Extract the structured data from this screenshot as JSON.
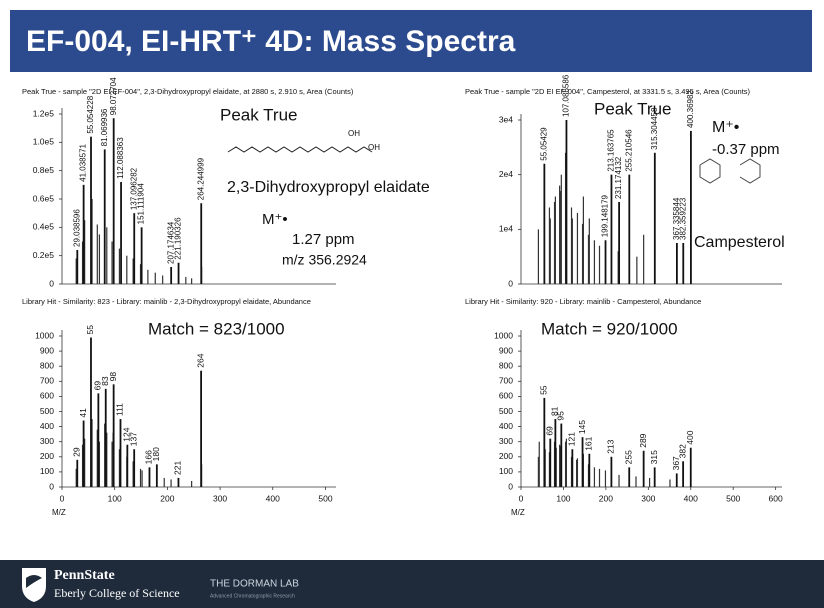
{
  "header": {
    "title": "EF-004, EI-HRT⁺ 4D:  Mass Spectra"
  },
  "footer": {
    "brand": "PennState",
    "college": "Eberly College of Science",
    "lab": "THE DORMAN LAB",
    "lab_sub": "Advanced Chromatographic Research"
  },
  "chart_data": [
    {
      "type": "bar",
      "title": "Peak True - sample \"2D EI EF-004\", 2,3-Dihydroxypropyl elaidate, at 2880 s, 2.910 s, Area (Counts)",
      "x": [
        29.038596,
        41.038571,
        55.054228,
        81.069936,
        98.072704,
        112.088363,
        137.096282,
        151.111904,
        207.174634,
        221.190326,
        264.244999
      ],
      "values": [
        24000,
        70000,
        104000,
        95000,
        117000,
        72000,
        50000,
        40000,
        12000,
        15000,
        57000
      ],
      "x_minor": [
        27,
        39,
        43,
        57,
        67,
        71,
        85,
        95,
        109,
        123,
        135,
        149,
        163,
        177,
        191,
        235,
        246,
        265
      ],
      "values_minor": [
        18000,
        30000,
        45000,
        60000,
        42000,
        35000,
        40000,
        30000,
        25000,
        20000,
        18000,
        14000,
        10000,
        8000,
        6000,
        5000,
        4000,
        12000
      ],
      "xlim": [
        0,
        520
      ],
      "ylim": [
        0,
        120000
      ],
      "yticks": [
        0,
        {
          "value": 20000,
          "label": "0.2e5"
        },
        {
          "value": 40000,
          "label": "0.4e5"
        },
        {
          "value": 60000,
          "label": "0.6e5"
        },
        {
          "value": 80000,
          "label": "0.8e5"
        },
        {
          "value": 100000,
          "label": "1.0e5"
        },
        {
          "value": 120000,
          "label": "1.2e5"
        }
      ],
      "annotations": [
        "Peak True",
        "2,3-Dihydroxypropyl elaidate",
        "M⁺•",
        "1.27 ppm",
        "m/z 356.2924",
        "OH",
        "OH"
      ]
    },
    {
      "type": "bar",
      "title": "Peak True - sample \"2D EI EF-004\", Campesterol, at 3331.5 s, 3.495 s, Area (Counts)",
      "x": [
        55.05429,
        107.085586,
        199.148179,
        213.163765,
        231.174132,
        255.210546,
        315.304458,
        367.335844,
        382.359223,
        400.36982
      ],
      "values": [
        22000,
        30000,
        8000,
        20000,
        15000,
        20000,
        24000,
        7500,
        7500,
        28000
      ],
      "x_minor": [
        41,
        67,
        69,
        79,
        81,
        91,
        93,
        95,
        105,
        119,
        121,
        133,
        145,
        147,
        159,
        161,
        173,
        185,
        229,
        273,
        289
      ],
      "values_minor": [
        10000,
        14000,
        12000,
        15000,
        16000,
        18000,
        17000,
        20000,
        24000,
        14000,
        12000,
        13000,
        11000,
        16000,
        9000,
        12000,
        8000,
        7000,
        6000,
        5000,
        9000
      ],
      "xlim": [
        0,
        615
      ],
      "ylim": [
        0,
        30000
      ],
      "yticks": [
        0,
        {
          "value": 10000,
          "label": "1e4"
        },
        {
          "value": 20000,
          "label": "2e4"
        },
        {
          "value": 30000,
          "label": "3e4"
        }
      ],
      "annotations": [
        "Peak True",
        "M⁺•",
        "-0.37 ppm",
        "Campesterol"
      ]
    },
    {
      "type": "bar",
      "title": "Library Hit - Similarity: 823 - Library: mainlib - 2,3-Dihydroxypropyl elaidate, Abundance",
      "x": [
        29,
        41,
        55,
        69,
        83,
        98,
        111,
        124,
        137,
        166,
        180,
        221,
        264
      ],
      "values": [
        180,
        440,
        990,
        620,
        650,
        680,
        450,
        280,
        250,
        130,
        150,
        60,
        770
      ],
      "x_minor": [
        27,
        39,
        43,
        57,
        67,
        71,
        81,
        85,
        95,
        97,
        109,
        123,
        135,
        149,
        152,
        194,
        207,
        246,
        265
      ],
      "values_minor": [
        120,
        280,
        320,
        450,
        380,
        300,
        420,
        360,
        300,
        360,
        250,
        200,
        170,
        120,
        110,
        60,
        50,
        40,
        150
      ],
      "xlim": [
        0,
        520
      ],
      "ylim": [
        0,
        1000
      ],
      "yticks": [
        0,
        100,
        200,
        300,
        400,
        500,
        600,
        700,
        800,
        900,
        1000
      ],
      "xticks": [
        0,
        100,
        200,
        300,
        400,
        500
      ],
      "xlabel": "M/Z",
      "annotations": [
        "Match = 823/1000"
      ]
    },
    {
      "type": "bar",
      "title": "Library Hit - Similarity: 920 - Library: mainlib - Campesterol, Abundance",
      "x": [
        55,
        69,
        81,
        95,
        121,
        145,
        161,
        213,
        255,
        289,
        315,
        367,
        382,
        400
      ],
      "values": [
        590,
        320,
        450,
        420,
        250,
        330,
        220,
        200,
        130,
        240,
        130,
        90,
        170,
        260
      ],
      "x_minor": [
        41,
        43,
        57,
        67,
        79,
        83,
        91,
        93,
        105,
        107,
        119,
        131,
        133,
        147,
        159,
        173,
        185,
        199,
        231,
        271,
        303,
        351
      ],
      "values_minor": [
        200,
        300,
        250,
        230,
        300,
        260,
        280,
        270,
        300,
        320,
        200,
        180,
        190,
        220,
        150,
        130,
        120,
        110,
        80,
        70,
        60,
        50
      ],
      "xlim": [
        0,
        615
      ],
      "ylim": [
        0,
        1000
      ],
      "yticks": [
        0,
        100,
        200,
        300,
        400,
        500,
        600,
        700,
        800,
        900,
        1000
      ],
      "xticks": [
        0,
        100,
        200,
        300,
        400,
        500,
        600
      ],
      "xlabel": "M/Z",
      "annotations": [
        "Match = 920/1000"
      ]
    }
  ]
}
